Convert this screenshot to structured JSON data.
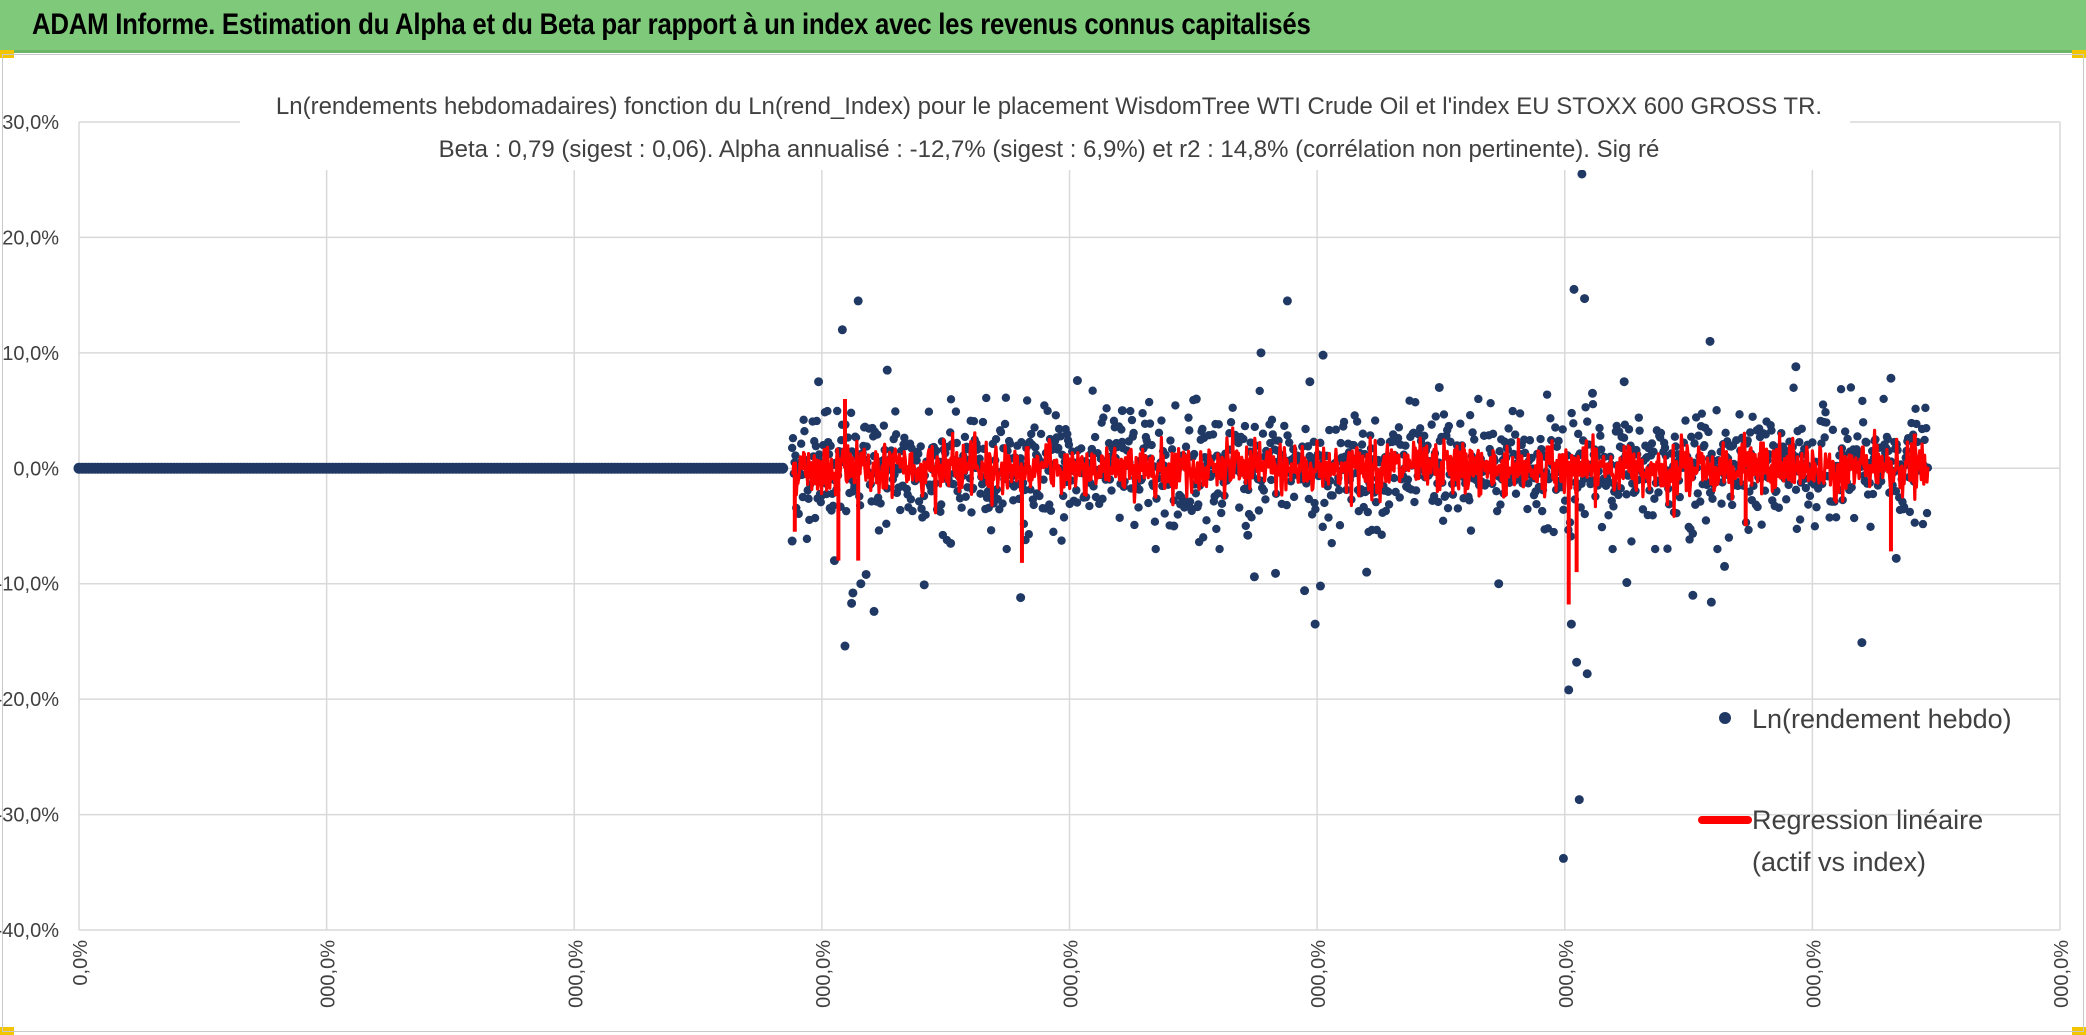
{
  "header": {
    "title": "ADAM Informe. Estimation du Alpha et du Beta par rapport à un index avec les revenus connus capitalisés"
  },
  "chart_data": {
    "type": "scatter",
    "title_line1": "Ln(rendements hebdomadaires) fonction du Ln(rend_Index) pour le placement WisdomTree WTI Crude Oil  et l'index EU STOXX 600 GROSS TR.",
    "title_line2": "Beta : 0,79 (sigest : 0,06). Alpha annualisé : -12,7% (sigest : 6,9%) et r2 : 14,8% (corrélation non pertinente). Sig ré",
    "y_ticks": [
      "30,0%",
      "20,0%",
      "10,0%",
      "0,0%",
      "-10,0%",
      "-20,0%",
      "-30,0%",
      "-40,0%"
    ],
    "y_tick_values": [
      30,
      20,
      10,
      0,
      -10,
      -20,
      -30,
      -40
    ],
    "ylim": [
      -40,
      30
    ],
    "x_ticks": [
      "0,0%",
      "000,0%",
      "000,0%",
      "000,0%",
      "000,0%",
      "000,0%",
      "000,0%",
      "000,0%",
      "000,0%"
    ],
    "xlim": [
      0,
      1500
    ],
    "x_tick_step": 187.5,
    "grid": true,
    "legend_position": "bottom-right",
    "colors": {
      "scatter": "#203864",
      "regression": "#ff0000",
      "grid": "#d9d9d9",
      "text": "#404040"
    },
    "series": [
      {
        "name": "Ln(rendement hebdo)",
        "kind": "scatter",
        "zero_range": [
          0,
          535
        ],
        "outliers": [
          [
            540,
            -6.3
          ],
          [
            560,
            7.5
          ],
          [
            572,
            -8
          ],
          [
            580,
            -15.4
          ],
          [
            585,
            -11.7
          ],
          [
            592,
            -10
          ],
          [
            596,
            -9.2
          ],
          [
            602,
            -12.4
          ],
          [
            590,
            14.5
          ],
          [
            586,
            -10.8
          ],
          [
            578,
            12
          ],
          [
            612,
            8.5
          ],
          [
            640,
            -10.1
          ],
          [
            660,
            -6.5
          ],
          [
            713,
            -11.2
          ],
          [
            756,
            7.6
          ],
          [
            790,
            5
          ],
          [
            829,
            -5
          ],
          [
            846,
            6
          ],
          [
            885,
            -5.8
          ],
          [
            890,
            -9.4
          ],
          [
            895,
            10
          ],
          [
            906,
            -9.1
          ],
          [
            915,
            14.5
          ],
          [
            928,
            -10.6
          ],
          [
            936,
            -13.5
          ],
          [
            940,
            -10.2
          ],
          [
            932,
            7.5
          ],
          [
            942,
            9.8
          ],
          [
            975,
            -9
          ],
          [
            1030,
            7
          ],
          [
            1075,
            -10
          ],
          [
            1128,
            -19.2
          ],
          [
            1130,
            -13.5
          ],
          [
            1132,
            15.5
          ],
          [
            1134,
            -16.8
          ],
          [
            1136,
            -28.7
          ],
          [
            1138,
            25.5
          ],
          [
            1140,
            14.7
          ],
          [
            1124,
            -33.8
          ],
          [
            1142,
            -17.8
          ],
          [
            1146,
            6.5
          ],
          [
            1170,
            7.5
          ],
          [
            1172,
            -9.9
          ],
          [
            1222,
            -11
          ],
          [
            1235,
            11
          ],
          [
            1236,
            -11.6
          ],
          [
            1246,
            -8.5
          ],
          [
            1300,
            8.8
          ],
          [
            1350,
            -15.1
          ],
          [
            1372,
            7.8
          ],
          [
            1376,
            -7.8
          ]
        ]
      },
      {
        "name": "Regression linéaire\n(actif vs index)",
        "legend_line1": "Regression linéaire",
        "legend_line2": "(actif vs index)",
        "kind": "line",
        "beta": 0.79,
        "range": [
          540,
          1400
        ]
      }
    ]
  }
}
